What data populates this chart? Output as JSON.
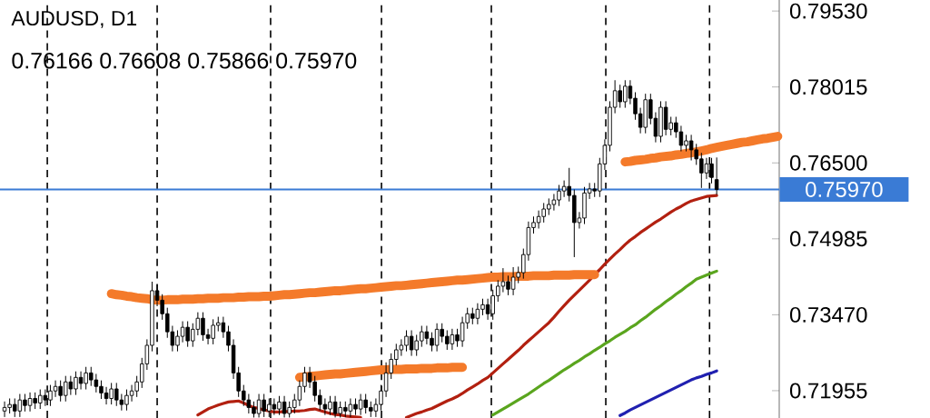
{
  "chart_data": {
    "type": "candlestick",
    "title": "AUDUSD, D1",
    "subtitle": "0.76166 0.76608 0.75866 0.75970",
    "categories": [
      null,
      null,
      null,
      null,
      null,
      null,
      null,
      null,
      null,
      null,
      null,
      null,
      null,
      null,
      null,
      null,
      null,
      null,
      null,
      null,
      null,
      null,
      null,
      null,
      null,
      null,
      null,
      null,
      null,
      null,
      null,
      null,
      null,
      null,
      null,
      null,
      null,
      null,
      null,
      null,
      null,
      null,
      null,
      null,
      null,
      null,
      null,
      null,
      null,
      null,
      null,
      null,
      null,
      null,
      null,
      null,
      null,
      null,
      null,
      null,
      null,
      null,
      null,
      null,
      null,
      null,
      null,
      null,
      null,
      null,
      null,
      null,
      null,
      null,
      null,
      null,
      null,
      null,
      null,
      null,
      null,
      null,
      null,
      null,
      null,
      null,
      null,
      null,
      null,
      null,
      null,
      null,
      null,
      null,
      null,
      null,
      null,
      null,
      null,
      null,
      null,
      null,
      null,
      null,
      null,
      null,
      null,
      null,
      null,
      null,
      null,
      null,
      null,
      null,
      null,
      null,
      null,
      null,
      null,
      null,
      null,
      null,
      null,
      null,
      null,
      null,
      null,
      null,
      null,
      null,
      null,
      null,
      null,
      null,
      null,
      null,
      null,
      null,
      null,
      null,
      null,
      null,
      null,
      null,
      null,
      null,
      null,
      null,
      null,
      null,
      null,
      null,
      null
    ],
    "ohlc": [
      [
        0.7155,
        0.7174,
        0.7143,
        0.7162
      ],
      [
        0.7162,
        0.718,
        0.715,
        0.7168
      ],
      [
        0.7168,
        0.718,
        0.7143,
        0.7155
      ],
      [
        0.7155,
        0.7189,
        0.7143,
        0.7177
      ],
      [
        0.7177,
        0.7189,
        0.7154,
        0.7166
      ],
      [
        0.7166,
        0.7192,
        0.7154,
        0.718
      ],
      [
        0.718,
        0.7192,
        0.7159,
        0.7171
      ],
      [
        0.7171,
        0.7198,
        0.7159,
        0.7186
      ],
      [
        0.7186,
        0.7198,
        0.7165,
        0.7177
      ],
      [
        0.7177,
        0.7207,
        0.7165,
        0.7195
      ],
      [
        0.7195,
        0.7216,
        0.7183,
        0.7204
      ],
      [
        0.7204,
        0.7216,
        0.7174,
        0.7186
      ],
      [
        0.7186,
        0.7225,
        0.7174,
        0.7213
      ],
      [
        0.7213,
        0.7225,
        0.7187,
        0.7199
      ],
      [
        0.7199,
        0.7234,
        0.7187,
        0.7222
      ],
      [
        0.7222,
        0.7234,
        0.7198,
        0.721
      ],
      [
        0.721,
        0.7243,
        0.7198,
        0.7231
      ],
      [
        0.7231,
        0.7243,
        0.7205,
        0.7217
      ],
      [
        0.7217,
        0.7229,
        0.7192,
        0.7204
      ],
      [
        0.7204,
        0.7216,
        0.7179,
        0.7191
      ],
      [
        0.7191,
        0.7203,
        0.7168,
        0.718
      ],
      [
        0.718,
        0.7211,
        0.7168,
        0.7199
      ],
      [
        0.7199,
        0.7211,
        0.7165,
        0.7177
      ],
      [
        0.7177,
        0.7189,
        0.7156,
        0.7168
      ],
      [
        0.7168,
        0.7198,
        0.7156,
        0.7186
      ],
      [
        0.7186,
        0.7207,
        0.7174,
        0.7195
      ],
      [
        0.7195,
        0.7225,
        0.7183,
        0.7213
      ],
      [
        0.7213,
        0.7261,
        0.7201,
        0.7249
      ],
      [
        0.7249,
        0.7298,
        0.7237,
        0.7286
      ],
      [
        0.7286,
        0.7413,
        0.7274,
        0.7395
      ],
      [
        0.7395,
        0.7407,
        0.7364,
        0.7376
      ],
      [
        0.7376,
        0.7388,
        0.7337,
        0.7349
      ],
      [
        0.7349,
        0.7361,
        0.7301,
        0.7313
      ],
      [
        0.7313,
        0.7325,
        0.7274,
        0.7286
      ],
      [
        0.7286,
        0.7316,
        0.7274,
        0.7304
      ],
      [
        0.7304,
        0.7334,
        0.7292,
        0.7322
      ],
      [
        0.7322,
        0.7334,
        0.7283,
        0.7295
      ],
      [
        0.7295,
        0.733,
        0.7283,
        0.7318
      ],
      [
        0.7318,
        0.7352,
        0.7306,
        0.734
      ],
      [
        0.734,
        0.7352,
        0.7295,
        0.7307
      ],
      [
        0.7307,
        0.7319,
        0.7288,
        0.73
      ],
      [
        0.73,
        0.7338,
        0.7288,
        0.7326
      ],
      [
        0.7326,
        0.7343,
        0.7314,
        0.7331
      ],
      [
        0.7331,
        0.7343,
        0.7301,
        0.7313
      ],
      [
        0.7313,
        0.7325,
        0.7274,
        0.7286
      ],
      [
        0.7286,
        0.7298,
        0.7219,
        0.7231
      ],
      [
        0.7231,
        0.7243,
        0.7183,
        0.7195
      ],
      [
        0.7195,
        0.7207,
        0.7165,
        0.7177
      ],
      [
        0.7177,
        0.7189,
        0.715,
        0.7162
      ],
      [
        0.7162,
        0.7174,
        0.7142,
        0.715
      ],
      [
        0.715,
        0.7189,
        0.7142,
        0.7177
      ],
      [
        0.7177,
        0.7189,
        0.7143,
        0.7155
      ],
      [
        0.7155,
        0.718,
        0.7143,
        0.7168
      ],
      [
        0.7168,
        0.718,
        0.7147,
        0.7159
      ],
      [
        0.7159,
        0.7185,
        0.7147,
        0.7173
      ],
      [
        0.7173,
        0.7185,
        0.7142,
        0.715
      ],
      [
        0.715,
        0.7174,
        0.7142,
        0.7162
      ],
      [
        0.7162,
        0.7189,
        0.715,
        0.7177
      ],
      [
        0.7177,
        0.7216,
        0.7165,
        0.7204
      ],
      [
        0.7204,
        0.7243,
        0.7192,
        0.7231
      ],
      [
        0.7231,
        0.7243,
        0.7201,
        0.7213
      ],
      [
        0.7213,
        0.7225,
        0.7174,
        0.7186
      ],
      [
        0.7186,
        0.7198,
        0.7156,
        0.7168
      ],
      [
        0.7168,
        0.718,
        0.7147,
        0.7159
      ],
      [
        0.7159,
        0.7185,
        0.7147,
        0.7173
      ],
      [
        0.7173,
        0.7185,
        0.7142,
        0.715
      ],
      [
        0.715,
        0.7174,
        0.7142,
        0.7162
      ],
      [
        0.7162,
        0.7174,
        0.7143,
        0.7155
      ],
      [
        0.7155,
        0.718,
        0.7143,
        0.7168
      ],
      [
        0.7168,
        0.718,
        0.7147,
        0.7159
      ],
      [
        0.7159,
        0.7189,
        0.7147,
        0.7177
      ],
      [
        0.7177,
        0.7189,
        0.715,
        0.7162
      ],
      [
        0.7162,
        0.7174,
        0.7143,
        0.7155
      ],
      [
        0.7155,
        0.718,
        0.7143,
        0.7168
      ],
      [
        0.7168,
        0.7207,
        0.7156,
        0.7195
      ],
      [
        0.7195,
        0.7252,
        0.7183,
        0.7231
      ],
      [
        0.7231,
        0.727,
        0.7219,
        0.7258
      ],
      [
        0.7258,
        0.7289,
        0.7246,
        0.7277
      ],
      [
        0.7277,
        0.7298,
        0.7265,
        0.7286
      ],
      [
        0.7286,
        0.7316,
        0.7274,
        0.7304
      ],
      [
        0.7304,
        0.7316,
        0.7265,
        0.7277
      ],
      [
        0.7277,
        0.7307,
        0.7265,
        0.7295
      ],
      [
        0.7295,
        0.7325,
        0.7283,
        0.7313
      ],
      [
        0.7313,
        0.7325,
        0.7288,
        0.73
      ],
      [
        0.73,
        0.7312,
        0.7274,
        0.7286
      ],
      [
        0.7286,
        0.733,
        0.7274,
        0.7318
      ],
      [
        0.7318,
        0.733,
        0.7292,
        0.7304
      ],
      [
        0.7304,
        0.7316,
        0.7277,
        0.7289
      ],
      [
        0.7289,
        0.7319,
        0.7277,
        0.7307
      ],
      [
        0.7307,
        0.7319,
        0.7283,
        0.7295
      ],
      [
        0.7295,
        0.7343,
        0.7283,
        0.7331
      ],
      [
        0.7331,
        0.7361,
        0.7319,
        0.7349
      ],
      [
        0.7349,
        0.7361,
        0.7328,
        0.734
      ],
      [
        0.734,
        0.737,
        0.7328,
        0.7358
      ],
      [
        0.7358,
        0.7379,
        0.7346,
        0.7367
      ],
      [
        0.7367,
        0.7379,
        0.7337,
        0.7349
      ],
      [
        0.7349,
        0.7397,
        0.7337,
        0.7385
      ],
      [
        0.7385,
        0.7416,
        0.7373,
        0.7404
      ],
      [
        0.7404,
        0.744,
        0.7392,
        0.7413
      ],
      [
        0.7413,
        0.7425,
        0.7386,
        0.7398
      ],
      [
        0.7398,
        0.7442,
        0.7386,
        0.7422
      ],
      [
        0.7422,
        0.7443,
        0.741,
        0.7431
      ],
      [
        0.7431,
        0.7479,
        0.7419,
        0.7467
      ],
      [
        0.7467,
        0.7533,
        0.7455,
        0.7521
      ],
      [
        0.7521,
        0.7543,
        0.7509,
        0.7531
      ],
      [
        0.7531,
        0.7555,
        0.7519,
        0.7543
      ],
      [
        0.7543,
        0.757,
        0.7531,
        0.7558
      ],
      [
        0.7558,
        0.7579,
        0.7546,
        0.7567
      ],
      [
        0.7567,
        0.7588,
        0.7555,
        0.7576
      ],
      [
        0.7576,
        0.7606,
        0.7564,
        0.7594
      ],
      [
        0.7594,
        0.7615,
        0.7582,
        0.7603
      ],
      [
        0.7603,
        0.764,
        0.7573,
        0.7585
      ],
      [
        0.7585,
        0.7597,
        0.7462,
        0.7531
      ],
      [
        0.7531,
        0.7552,
        0.7519,
        0.754
      ],
      [
        0.754,
        0.7602,
        0.7528,
        0.759
      ],
      [
        0.759,
        0.761,
        0.7578,
        0.7598
      ],
      [
        0.7598,
        0.761,
        0.7582,
        0.7594
      ],
      [
        0.7594,
        0.766,
        0.7582,
        0.7648
      ],
      [
        0.7648,
        0.7697,
        0.7636,
        0.7685
      ],
      [
        0.7685,
        0.7773,
        0.7673,
        0.7761
      ],
      [
        0.7761,
        0.7815,
        0.7749,
        0.7794
      ],
      [
        0.7794,
        0.7806,
        0.776,
        0.7772
      ],
      [
        0.7772,
        0.7815,
        0.776,
        0.7803
      ],
      [
        0.7803,
        0.7815,
        0.7767,
        0.7779
      ],
      [
        0.7779,
        0.7791,
        0.7736,
        0.7748
      ],
      [
        0.7748,
        0.776,
        0.7709,
        0.7721
      ],
      [
        0.7721,
        0.7788,
        0.7709,
        0.7776
      ],
      [
        0.7776,
        0.7788,
        0.7727,
        0.7739
      ],
      [
        0.7739,
        0.7751,
        0.7691,
        0.7703
      ],
      [
        0.7703,
        0.7773,
        0.7691,
        0.7761
      ],
      [
        0.7761,
        0.7773,
        0.7705,
        0.7717
      ],
      [
        0.7717,
        0.7742,
        0.7705,
        0.773
      ],
      [
        0.773,
        0.7742,
        0.77,
        0.7712
      ],
      [
        0.7712,
        0.7724,
        0.7673,
        0.7685
      ],
      [
        0.7685,
        0.7706,
        0.7673,
        0.7694
      ],
      [
        0.7694,
        0.7706,
        0.7655,
        0.7676
      ],
      [
        0.7676,
        0.7688,
        0.7646,
        0.7658
      ],
      [
        0.7658,
        0.767,
        0.76,
        0.763
      ],
      [
        0.763,
        0.766,
        0.7618,
        0.7648
      ],
      [
        0.7648,
        0.766,
        0.7609,
        0.7621
      ],
      [
        0.76166,
        0.76608,
        0.75866,
        0.7597
      ],
      null,
      null,
      null,
      null,
      null,
      null,
      null,
      null,
      null,
      null,
      null,
      null
    ],
    "series": [
      {
        "type": "line",
        "color": "#b22010",
        "values": [
          null,
          null,
          null,
          null,
          null,
          null,
          null,
          null,
          null,
          null,
          null,
          null,
          null,
          null,
          null,
          null,
          null,
          null,
          null,
          null,
          null,
          null,
          null,
          null,
          null,
          null,
          null,
          null,
          null,
          null,
          null,
          null,
          null,
          null,
          null,
          null,
          null,
          null,
          0.7147,
          0.7153,
          0.7159,
          0.7163,
          0.7167,
          0.717,
          0.7173,
          0.7174,
          0.7175,
          0.7171,
          0.7166,
          0.7162,
          0.716,
          0.7157,
          0.7155,
          0.7153,
          0.7153,
          0.7154,
          0.7154,
          0.7155,
          0.7155,
          0.7156,
          0.7158,
          0.7159,
          0.7156,
          0.7153,
          0.715,
          0.7148,
          0.7147,
          0.7145,
          0.7144,
          0.7143,
          0.7142,
          null,
          null,
          null,
          null,
          null,
          null,
          null,
          null,
          0.7142,
          0.7146,
          0.715,
          0.7153,
          0.7157,
          0.716,
          0.7165,
          0.717,
          0.7175,
          0.7179,
          0.7184,
          0.719,
          0.7197,
          0.7203,
          0.7209,
          0.7216,
          0.7222,
          0.7231,
          0.724,
          0.7249,
          0.7258,
          0.7267,
          0.7276,
          0.7286,
          0.7295,
          0.7304,
          0.7313,
          0.7322,
          0.7331,
          0.7342,
          0.7354,
          0.7365,
          0.7376,
          0.7386,
          0.7396,
          0.7406,
          0.7416,
          0.7427,
          0.7437,
          0.7448,
          0.7458,
          0.7468,
          0.7477,
          0.7487,
          0.7496,
          0.7503,
          0.7511,
          0.7518,
          0.7525,
          0.7532,
          0.7538,
          0.7545,
          0.7552,
          0.7558,
          0.7563,
          0.7569,
          0.7574,
          0.7577,
          0.758,
          0.7583,
          0.7584,
          0.7585,
          null,
          null,
          null,
          null,
          null,
          null,
          null,
          null,
          null,
          null,
          null,
          null
        ]
      },
      {
        "type": "line",
        "color": "#5aa51e",
        "values": [
          null,
          null,
          null,
          null,
          null,
          null,
          null,
          null,
          null,
          null,
          null,
          null,
          null,
          null,
          null,
          null,
          null,
          null,
          null,
          null,
          null,
          null,
          null,
          null,
          null,
          null,
          null,
          null,
          null,
          null,
          null,
          null,
          null,
          null,
          null,
          null,
          null,
          null,
          null,
          null,
          null,
          null,
          null,
          null,
          null,
          null,
          null,
          null,
          null,
          null,
          null,
          null,
          null,
          null,
          null,
          null,
          null,
          null,
          null,
          null,
          null,
          null,
          null,
          null,
          null,
          null,
          null,
          null,
          null,
          null,
          null,
          null,
          null,
          null,
          null,
          null,
          null,
          null,
          null,
          null,
          null,
          null,
          null,
          null,
          null,
          null,
          null,
          null,
          null,
          null,
          null,
          null,
          null,
          null,
          null,
          null,
          0.7147,
          0.7153,
          0.7159,
          0.7165,
          0.7171,
          0.7177,
          0.7183,
          0.7189,
          0.7196,
          0.7203,
          0.721,
          0.7216,
          0.7223,
          0.723,
          0.7237,
          0.7243,
          0.725,
          0.7256,
          0.7263,
          0.7269,
          0.7276,
          0.7282,
          0.7289,
          0.7295,
          0.7302,
          0.7308,
          0.7314,
          0.7321,
          0.7327,
          0.7335,
          0.7342,
          0.735,
          0.7358,
          0.7365,
          0.7373,
          0.738,
          0.7388,
          0.7395,
          0.7403,
          0.741,
          0.7418,
          0.7422,
          0.7426,
          0.743,
          0.7434,
          null,
          null,
          null,
          null,
          null,
          null,
          null,
          null,
          null,
          null,
          null,
          null
        ]
      },
      {
        "type": "line",
        "color": "#2020b0",
        "values": [
          null,
          null,
          null,
          null,
          null,
          null,
          null,
          null,
          null,
          null,
          null,
          null,
          null,
          null,
          null,
          null,
          null,
          null,
          null,
          null,
          null,
          null,
          null,
          null,
          null,
          null,
          null,
          null,
          null,
          null,
          null,
          null,
          null,
          null,
          null,
          null,
          null,
          null,
          null,
          null,
          null,
          null,
          null,
          null,
          null,
          null,
          null,
          null,
          null,
          null,
          null,
          null,
          null,
          null,
          null,
          null,
          null,
          null,
          null,
          null,
          null,
          null,
          null,
          null,
          null,
          null,
          null,
          null,
          null,
          null,
          null,
          null,
          null,
          null,
          null,
          null,
          null,
          null,
          null,
          null,
          null,
          null,
          null,
          null,
          null,
          null,
          null,
          null,
          null,
          null,
          null,
          null,
          null,
          null,
          null,
          null,
          null,
          null,
          null,
          null,
          null,
          null,
          null,
          null,
          null,
          null,
          null,
          null,
          null,
          null,
          null,
          null,
          null,
          null,
          null,
          null,
          null,
          null,
          null,
          null,
          null,
          0.7146,
          0.7151,
          0.7157,
          0.7162,
          0.7167,
          0.7172,
          0.7177,
          0.7182,
          0.7187,
          0.7192,
          0.7197,
          0.7202,
          0.7207,
          0.7212,
          0.7217,
          0.7221,
          0.7224,
          0.7228,
          0.7231,
          0.7235,
          null,
          null,
          null,
          null,
          null,
          null,
          null,
          null,
          null,
          null,
          null,
          null
        ]
      },
      {
        "type": "line",
        "color": "#f47a2a",
        "values": [
          null,
          null,
          null,
          null,
          null,
          null,
          null,
          null,
          null,
          null,
          null,
          null,
          null,
          null,
          null,
          null,
          null,
          null,
          null,
          null,
          null,
          0.7389,
          0.7387,
          0.7386,
          0.7384,
          0.7383,
          0.7381,
          0.738,
          0.7379,
          0.7377,
          0.7376,
          0.7376,
          0.7377,
          0.7377,
          0.7377,
          0.7378,
          0.7378,
          0.7378,
          0.7379,
          0.7379,
          0.738,
          0.738,
          0.738,
          0.7381,
          0.7381,
          0.7381,
          0.7382,
          0.7382,
          0.7383,
          0.7383,
          0.7383,
          0.7384,
          0.7384,
          0.7385,
          0.7386,
          0.7387,
          0.7387,
          0.7388,
          0.7389,
          0.739,
          0.7391,
          0.7391,
          0.7392,
          0.7393,
          0.7394,
          0.7395,
          0.7395,
          0.7396,
          0.7397,
          0.7398,
          0.7399,
          0.7399,
          0.74,
          0.7401,
          0.7402,
          0.7403,
          0.7404,
          0.7405,
          0.7405,
          0.7406,
          0.7407,
          0.7408,
          0.7409,
          0.741,
          0.7411,
          0.7412,
          0.7413,
          0.7414,
          0.7415,
          0.7416,
          0.7416,
          0.7417,
          0.7418,
          0.7419,
          0.742,
          0.7421,
          0.7422,
          0.7422,
          0.7423,
          0.7423,
          0.7423,
          0.7424,
          0.7424,
          0.7424,
          0.7425,
          0.7425,
          0.7425,
          0.7425,
          0.7426,
          0.7426,
          0.7426,
          0.7426,
          0.7427,
          0.7427,
          0.7427,
          0.7427,
          0.7427,
          null,
          null,
          null,
          null,
          null,
          null,
          null,
          null,
          null,
          null,
          null,
          null,
          null,
          null,
          null,
          null,
          null,
          null,
          null,
          null,
          null,
          null,
          null,
          null,
          null,
          null,
          null,
          null,
          null,
          null,
          null,
          null,
          null,
          null,
          null,
          null
        ]
      },
      {
        "type": "line",
        "color": "#f47a2a",
        "values": [
          null,
          null,
          null,
          null,
          null,
          null,
          null,
          null,
          null,
          null,
          null,
          null,
          null,
          null,
          null,
          null,
          null,
          null,
          null,
          null,
          null,
          null,
          null,
          null,
          null,
          null,
          null,
          null,
          null,
          null,
          null,
          null,
          null,
          null,
          null,
          null,
          null,
          null,
          null,
          null,
          null,
          null,
          null,
          null,
          null,
          null,
          null,
          null,
          null,
          null,
          null,
          null,
          null,
          null,
          null,
          null,
          null,
          null,
          0.7222,
          0.7223,
          0.7224,
          0.7225,
          0.7226,
          0.7227,
          0.7228,
          0.7229,
          0.7229,
          0.723,
          0.7231,
          0.7232,
          0.7233,
          0.7234,
          0.7235,
          0.7236,
          0.7237,
          0.7237,
          0.7238,
          0.7238,
          0.7238,
          0.7239,
          0.7239,
          0.7239,
          0.724,
          0.724,
          0.724,
          0.7241,
          0.7241,
          0.7241,
          0.7242,
          0.7242,
          0.7242,
          null,
          null,
          null,
          null,
          null,
          null,
          null,
          null,
          null,
          null,
          null,
          null,
          null,
          null,
          null,
          null,
          null,
          null,
          null,
          null,
          null,
          null,
          null,
          null,
          null,
          null,
          null,
          null,
          null,
          null,
          null,
          null,
          null,
          null,
          null,
          null,
          null,
          null,
          null,
          null,
          null,
          null,
          null,
          null,
          null,
          null,
          null,
          null,
          null,
          null,
          null,
          null,
          null,
          null,
          null,
          null,
          null,
          null,
          null,
          null,
          null,
          null
        ]
      },
      {
        "type": "line",
        "color": "#f47a2a",
        "values": [
          null,
          null,
          null,
          null,
          null,
          null,
          null,
          null,
          null,
          null,
          null,
          null,
          null,
          null,
          null,
          null,
          null,
          null,
          null,
          null,
          null,
          null,
          null,
          null,
          null,
          null,
          null,
          null,
          null,
          null,
          null,
          null,
          null,
          null,
          null,
          null,
          null,
          null,
          null,
          null,
          null,
          null,
          null,
          null,
          null,
          null,
          null,
          null,
          null,
          null,
          null,
          null,
          null,
          null,
          null,
          null,
          null,
          null,
          null,
          null,
          null,
          null,
          null,
          null,
          null,
          null,
          null,
          null,
          null,
          null,
          null,
          null,
          null,
          null,
          null,
          null,
          null,
          null,
          null,
          null,
          null,
          null,
          null,
          null,
          null,
          null,
          null,
          null,
          null,
          null,
          null,
          null,
          null,
          null,
          null,
          null,
          null,
          null,
          null,
          null,
          null,
          null,
          null,
          null,
          null,
          null,
          null,
          null,
          null,
          null,
          null,
          null,
          null,
          null,
          null,
          null,
          null,
          null,
          null,
          null,
          null,
          null,
          0.7652,
          0.7653,
          0.7655,
          0.7656,
          0.7657,
          0.7659,
          0.766,
          0.7662,
          0.7663,
          0.7664,
          0.7666,
          0.7667,
          0.7669,
          0.767,
          0.7672,
          0.7674,
          0.7676,
          0.7679,
          0.7681,
          0.7683,
          0.7685,
          0.7687,
          0.7689,
          0.7691,
          0.7692,
          0.7694,
          0.7696,
          0.7698,
          0.7699,
          0.7701,
          0.7703
        ]
      }
    ],
    "ylim": [
      0.7141,
      0.7975
    ],
    "yticks": [
      {
        "value": 0.7953,
        "label": "0.79530"
      },
      {
        "value": 0.78015,
        "label": "0.78015"
      },
      {
        "value": 0.765,
        "label": "0.76500"
      },
      {
        "value": 0.74985,
        "label": "0.74985"
      },
      {
        "value": 0.7347,
        "label": "0.73470"
      },
      {
        "value": 0.71955,
        "label": "0.71955"
      }
    ],
    "ref_lines": [
      {
        "axis": "y",
        "value": 0.7597,
        "label": "0.75970",
        "color": "#3a7bd5"
      }
    ]
  }
}
